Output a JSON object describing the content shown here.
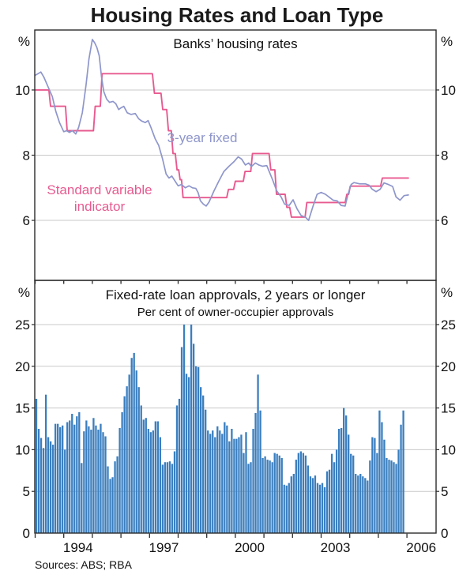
{
  "page_title": "Housing Rates and Loan Type",
  "sources_note": "Sources: ABS; RBA",
  "colors": {
    "bar": "#3a7ebf",
    "fixed_line": "#8e96cb",
    "variable_line": "#e85a8f",
    "grid": "#c9c9c9",
    "axis": "#2b2b2b",
    "text": "#101010",
    "title": "#1a1a1a"
  },
  "x_axis": {
    "start_year": 1993,
    "end_year": 2007,
    "tick_interval_years": 1,
    "year_labels": [
      {
        "year": 1994,
        "label": "1994"
      },
      {
        "year": 1997,
        "label": "1997"
      },
      {
        "year": 2000,
        "label": "2000"
      },
      {
        "year": 2003,
        "label": "2003"
      },
      {
        "year": 2006,
        "label": "2006"
      }
    ]
  },
  "chart_data": [
    {
      "type": "line",
      "panel": "top",
      "title": "Banks’ housing rates",
      "unit_label": "%",
      "ylim": [
        4.16,
        11.84
      ],
      "yticks": [
        10,
        8,
        6
      ],
      "grid": true,
      "series": [
        {
          "name": "3-year fixed",
          "color_key": "fixed_line",
          "data": [
            [
              1993.0,
              10.45
            ],
            [
              1993.1,
              10.5
            ],
            [
              1993.2,
              10.55
            ],
            [
              1993.3,
              10.4
            ],
            [
              1993.45,
              10.1
            ],
            [
              1993.6,
              9.8
            ],
            [
              1993.72,
              9.35
            ],
            [
              1993.85,
              9.0
            ],
            [
              1994.0,
              8.72
            ],
            [
              1994.1,
              8.75
            ],
            [
              1994.2,
              8.7
            ],
            [
              1994.3,
              8.75
            ],
            [
              1994.42,
              8.65
            ],
            [
              1994.52,
              8.85
            ],
            [
              1994.65,
              9.3
            ],
            [
              1994.78,
              10.15
            ],
            [
              1994.88,
              10.95
            ],
            [
              1995.0,
              11.55
            ],
            [
              1995.08,
              11.45
            ],
            [
              1995.16,
              11.3
            ],
            [
              1995.24,
              11.05
            ],
            [
              1995.32,
              10.4
            ],
            [
              1995.4,
              9.95
            ],
            [
              1995.5,
              9.72
            ],
            [
              1995.6,
              9.62
            ],
            [
              1995.72,
              9.65
            ],
            [
              1995.82,
              9.58
            ],
            [
              1995.92,
              9.4
            ],
            [
              1996.0,
              9.45
            ],
            [
              1996.1,
              9.5
            ],
            [
              1996.22,
              9.3
            ],
            [
              1996.35,
              9.25
            ],
            [
              1996.5,
              9.28
            ],
            [
              1996.62,
              9.12
            ],
            [
              1996.72,
              9.05
            ],
            [
              1996.85,
              9.0
            ],
            [
              1996.95,
              9.06
            ],
            [
              1997.05,
              8.85
            ],
            [
              1997.2,
              8.5
            ],
            [
              1997.32,
              8.3
            ],
            [
              1997.45,
              7.9
            ],
            [
              1997.58,
              7.42
            ],
            [
              1997.68,
              7.3
            ],
            [
              1997.78,
              7.36
            ],
            [
              1997.88,
              7.22
            ],
            [
              1998.0,
              7.06
            ],
            [
              1998.12,
              7.1
            ],
            [
              1998.25,
              7.0
            ],
            [
              1998.38,
              7.06
            ],
            [
              1998.5,
              7.0
            ],
            [
              1998.62,
              6.98
            ],
            [
              1998.7,
              6.85
            ],
            [
              1998.78,
              6.6
            ],
            [
              1998.88,
              6.5
            ],
            [
              1998.98,
              6.44
            ],
            [
              1999.08,
              6.56
            ],
            [
              1999.25,
              6.9
            ],
            [
              1999.42,
              7.2
            ],
            [
              1999.6,
              7.5
            ],
            [
              1999.78,
              7.66
            ],
            [
              1999.95,
              7.8
            ],
            [
              2000.1,
              7.95
            ],
            [
              2000.22,
              7.88
            ],
            [
              2000.35,
              7.7
            ],
            [
              2000.47,
              7.76
            ],
            [
              2000.56,
              7.65
            ],
            [
              2000.7,
              7.76
            ],
            [
              2000.82,
              7.7
            ],
            [
              2000.95,
              7.66
            ],
            [
              2001.1,
              7.68
            ],
            [
              2001.3,
              7.25
            ],
            [
              2001.45,
              6.9
            ],
            [
              2001.6,
              6.72
            ],
            [
              2001.72,
              6.5
            ],
            [
              2001.88,
              6.46
            ],
            [
              2002.02,
              6.63
            ],
            [
              2002.16,
              6.35
            ],
            [
              2002.3,
              6.15
            ],
            [
              2002.45,
              6.1
            ],
            [
              2002.56,
              6.0
            ],
            [
              2002.72,
              6.45
            ],
            [
              2002.86,
              6.8
            ],
            [
              2003.0,
              6.86
            ],
            [
              2003.15,
              6.8
            ],
            [
              2003.3,
              6.7
            ],
            [
              2003.42,
              6.62
            ],
            [
              2003.56,
              6.6
            ],
            [
              2003.7,
              6.46
            ],
            [
              2003.84,
              6.44
            ],
            [
              2003.94,
              6.8
            ],
            [
              2004.05,
              7.1
            ],
            [
              2004.15,
              7.16
            ],
            [
              2004.35,
              7.12
            ],
            [
              2004.55,
              7.12
            ],
            [
              2004.68,
              7.08
            ],
            [
              2004.78,
              6.96
            ],
            [
              2004.92,
              6.88
            ],
            [
              2005.06,
              6.95
            ],
            [
              2005.2,
              7.15
            ],
            [
              2005.35,
              7.1
            ],
            [
              2005.5,
              7.04
            ],
            [
              2005.62,
              6.72
            ],
            [
              2005.76,
              6.62
            ],
            [
              2005.9,
              6.76
            ],
            [
              2006.05,
              6.78
            ]
          ]
        },
        {
          "name": "Standard variable indicator",
          "label_lines": [
            "Standard variable",
            "indicator"
          ],
          "color_key": "variable_line",
          "data": [
            [
              1993.0,
              10.0
            ],
            [
              1993.48,
              10.0
            ],
            [
              1993.54,
              9.5
            ],
            [
              1994.06,
              9.5
            ],
            [
              1994.12,
              8.75
            ],
            [
              1995.04,
              8.75
            ],
            [
              1995.1,
              9.5
            ],
            [
              1995.28,
              9.5
            ],
            [
              1995.34,
              10.5
            ],
            [
              1997.1,
              10.5
            ],
            [
              1997.17,
              9.9
            ],
            [
              1997.4,
              9.9
            ],
            [
              1997.46,
              9.4
            ],
            [
              1997.6,
              9.4
            ],
            [
              1997.66,
              8.75
            ],
            [
              1997.76,
              8.75
            ],
            [
              1997.82,
              8.05
            ],
            [
              1997.9,
              8.05
            ],
            [
              1997.96,
              7.55
            ],
            [
              1998.02,
              7.55
            ],
            [
              1998.07,
              7.25
            ],
            [
              1998.12,
              7.25
            ],
            [
              1998.17,
              6.7
            ],
            [
              1999.7,
              6.7
            ],
            [
              1999.76,
              6.95
            ],
            [
              1999.94,
              6.95
            ],
            [
              2000.0,
              7.2
            ],
            [
              2000.28,
              7.2
            ],
            [
              2000.34,
              7.5
            ],
            [
              2000.54,
              7.5
            ],
            [
              2000.6,
              8.05
            ],
            [
              2001.18,
              8.05
            ],
            [
              2001.24,
              7.55
            ],
            [
              2001.38,
              7.55
            ],
            [
              2001.44,
              6.8
            ],
            [
              2001.74,
              6.8
            ],
            [
              2001.8,
              6.4
            ],
            [
              2001.9,
              6.4
            ],
            [
              2001.96,
              6.1
            ],
            [
              2002.44,
              6.1
            ],
            [
              2002.5,
              6.55
            ],
            [
              2003.84,
              6.55
            ],
            [
              2003.9,
              6.8
            ],
            [
              2003.96,
              6.8
            ],
            [
              2004.02,
              7.05
            ],
            [
              2005.08,
              7.05
            ],
            [
              2005.14,
              7.3
            ],
            [
              2006.05,
              7.3
            ]
          ]
        }
      ]
    },
    {
      "type": "bar",
      "panel": "bottom",
      "title": "Fixed-rate loan approvals, 2 years or longer",
      "subtitle": "Per cent of owner-occupier approvals",
      "unit_label": "%",
      "ylim": [
        0,
        30.3
      ],
      "yticks": [
        25,
        20,
        15,
        10,
        5,
        0
      ],
      "grid": true,
      "bars": {
        "start_year": 1993,
        "frequency_per_year": 12,
        "values": [
          16.1,
          12.5,
          11.4,
          10.2,
          16.6,
          11.5,
          11.0,
          10.6,
          13.1,
          13.1,
          12.7,
          12.9,
          10.0,
          13.3,
          13.5,
          14.3,
          13.0,
          14.0,
          14.5,
          8.4,
          12.2,
          13.5,
          12.8,
          12.4,
          13.8,
          12.9,
          12.4,
          13.1,
          12.1,
          11.6,
          8.0,
          6.5,
          6.7,
          8.6,
          9.2,
          12.6,
          14.5,
          16.4,
          17.6,
          19.0,
          21.0,
          21.6,
          19.5,
          17.5,
          15.3,
          13.6,
          13.8,
          12.5,
          12.1,
          12.3,
          13.4,
          13.4,
          11.5,
          8.2,
          8.5,
          8.5,
          8.6,
          8.3,
          9.8,
          15.3,
          16.1,
          22.3,
          25.0,
          19.1,
          18.7,
          25.0,
          22.7,
          20.0,
          19.9,
          17.5,
          16.5,
          14.8,
          12.3,
          11.9,
          12.3,
          11.5,
          12.8,
          12.3,
          11.9,
          13.3,
          12.9,
          11.0,
          12.5,
          11.3,
          11.3,
          11.5,
          11.8,
          9.6,
          12.1,
          8.3,
          8.5,
          12.5,
          14.4,
          19.0,
          14.7,
          9.0,
          9.2,
          8.8,
          8.7,
          8.5,
          9.6,
          9.5,
          9.3,
          9.0,
          5.8,
          5.7,
          6.0,
          6.8,
          7.1,
          8.8,
          9.6,
          9.8,
          9.6,
          9.3,
          8.1,
          6.8,
          6.6,
          6.9,
          6.0,
          5.8,
          6.0,
          5.5,
          7.4,
          7.6,
          9.5,
          8.5,
          10.0,
          12.5,
          12.6,
          15.0,
          14.1,
          11.8,
          9.5,
          9.3,
          7.1,
          6.9,
          7.1,
          6.8,
          6.6,
          6.3,
          8.7,
          11.5,
          11.4,
          9.6,
          14.7,
          13.3,
          11.2,
          9.0,
          8.8,
          8.7,
          8.5,
          8.3,
          10.0,
          13.0,
          14.7
        ]
      }
    }
  ]
}
